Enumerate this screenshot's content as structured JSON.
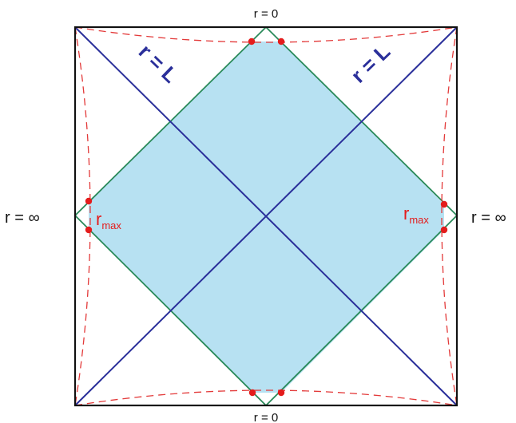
{
  "labels": {
    "top": "r = 0",
    "bottom": "r = 0",
    "left": "r = ∞",
    "right": "r = ∞",
    "diag_left": "r = L",
    "diag_right": "r = L",
    "rmax_left_base": "r",
    "rmax_left_sub": "max",
    "rmax_right_base": "r",
    "rmax_right_sub": "max"
  },
  "colors": {
    "frame": "#111111",
    "diagonal": "#2a2f9a",
    "diamond_stroke": "#2a8a5a",
    "diamond_fill": "#b7e1f2",
    "dashed_curve": "#e33a3a",
    "points": "#e41c1c"
  }
}
